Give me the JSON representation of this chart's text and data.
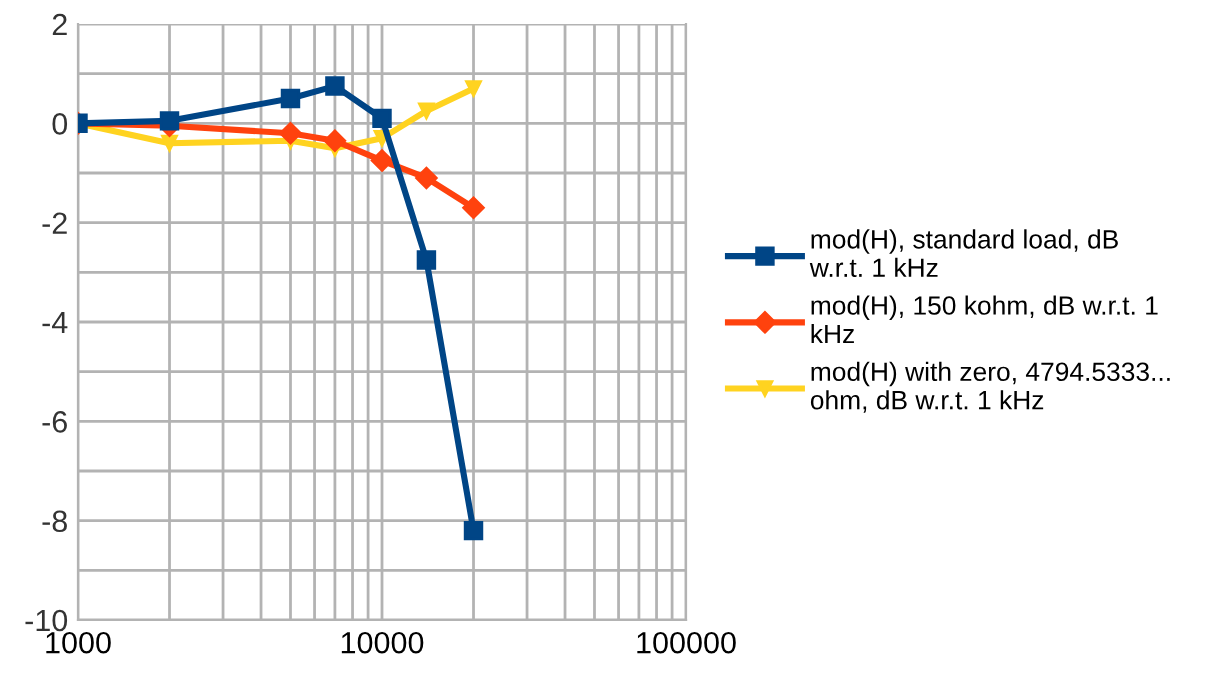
{
  "chart_data": {
    "type": "line",
    "x": [
      1000,
      2000,
      5000,
      7000,
      10000,
      14000,
      20000
    ],
    "series": [
      {
        "name": "mod(H), standard load, dB w.r.t. 1 kHz",
        "color": "#004586",
        "marker": "square",
        "values": [
          0,
          0.05,
          0.5,
          0.75,
          0.1,
          -2.75,
          -8.2
        ]
      },
      {
        "name": "mod(H), 150 kohm, dB w.r.t. 1 kHz",
        "color": "#ff420e",
        "marker": "diamond",
        "values": [
          0,
          -0.05,
          -0.2,
          -0.35,
          -0.75,
          -1.1,
          -1.7
        ]
      },
      {
        "name": "mod(H) with zero, 4794.5333... ohm, dB w.r.t. 1 kHz",
        "color": "#ffd320",
        "marker": "triangle",
        "values": [
          0,
          -0.4,
          -0.35,
          -0.5,
          -0.3,
          0.25,
          0.7
        ]
      }
    ],
    "log": "x",
    "xlim": [
      1000,
      100000
    ],
    "xticks": [
      1000,
      10000,
      100000
    ],
    "ylim": [
      -10,
      2
    ],
    "yticks": [
      -10,
      -8,
      -6,
      -4,
      -2,
      0,
      2
    ],
    "grid": true,
    "legend": "right",
    "line_style": "solid"
  }
}
